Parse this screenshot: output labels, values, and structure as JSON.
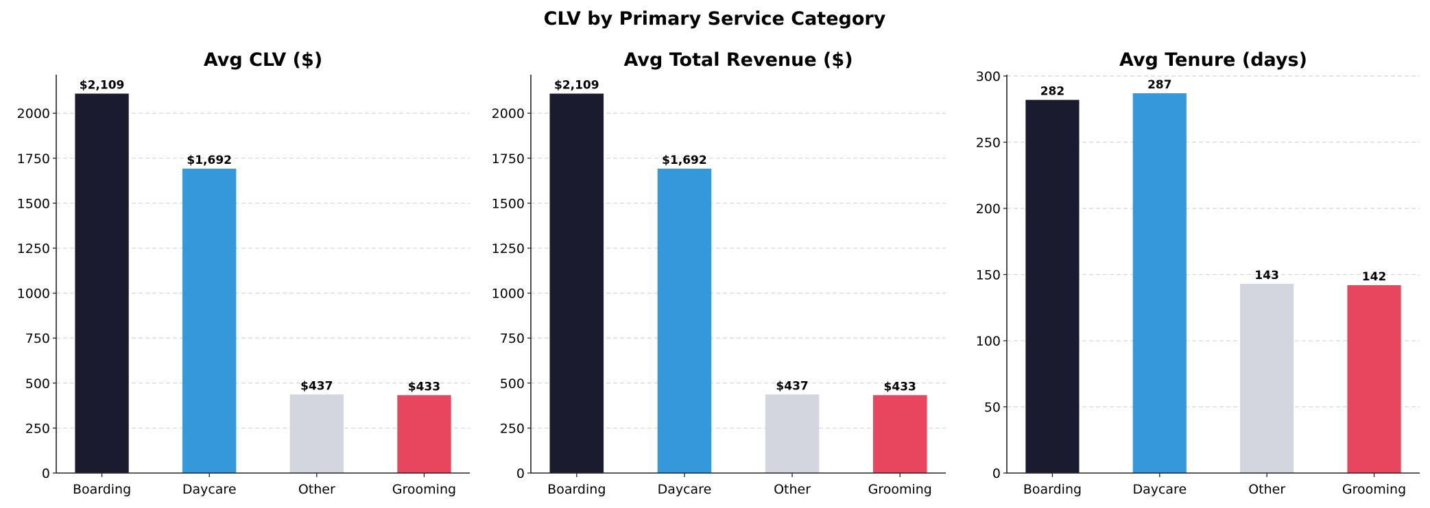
{
  "chart_data": {
    "title": "CLV by Primary Service Category",
    "panels": [
      {
        "type": "bar",
        "title": "Avg CLV ($)",
        "categories": [
          "Boarding",
          "Daycare",
          "Other",
          "Grooming"
        ],
        "values": [
          2109,
          1692,
          437,
          433
        ],
        "data_labels": [
          "$2,109",
          "$1,692",
          "$437",
          "$433"
        ],
        "yticks": [
          0,
          250,
          500,
          750,
          1000,
          1250,
          1500,
          1750,
          2000
        ],
        "ylim": [
          0,
          2214
        ],
        "grid": "y dashed",
        "xlabel": "",
        "ylabel": ""
      },
      {
        "type": "bar",
        "title": "Avg Total Revenue ($)",
        "categories": [
          "Boarding",
          "Daycare",
          "Other",
          "Grooming"
        ],
        "values": [
          2109,
          1692,
          437,
          433
        ],
        "data_labels": [
          "$2,109",
          "$1,692",
          "$437",
          "$433"
        ],
        "yticks": [
          0,
          250,
          500,
          750,
          1000,
          1250,
          1500,
          1750,
          2000
        ],
        "ylim": [
          0,
          2214
        ],
        "grid": "y dashed",
        "xlabel": "",
        "ylabel": ""
      },
      {
        "type": "bar",
        "title": "Avg Tenure (days)",
        "categories": [
          "Boarding",
          "Daycare",
          "Other",
          "Grooming"
        ],
        "values": [
          282,
          287,
          143,
          142
        ],
        "data_labels": [
          "282",
          "287",
          "143",
          "142"
        ],
        "yticks": [
          0,
          50,
          100,
          150,
          200,
          250,
          300
        ],
        "ylim": [
          0,
          301
        ],
        "grid": "y dashed",
        "xlabel": "",
        "ylabel": ""
      }
    ],
    "colors": [
      "#1b1b2f",
      "#3498db",
      "#d3d6de",
      "#e8455f"
    ]
  }
}
